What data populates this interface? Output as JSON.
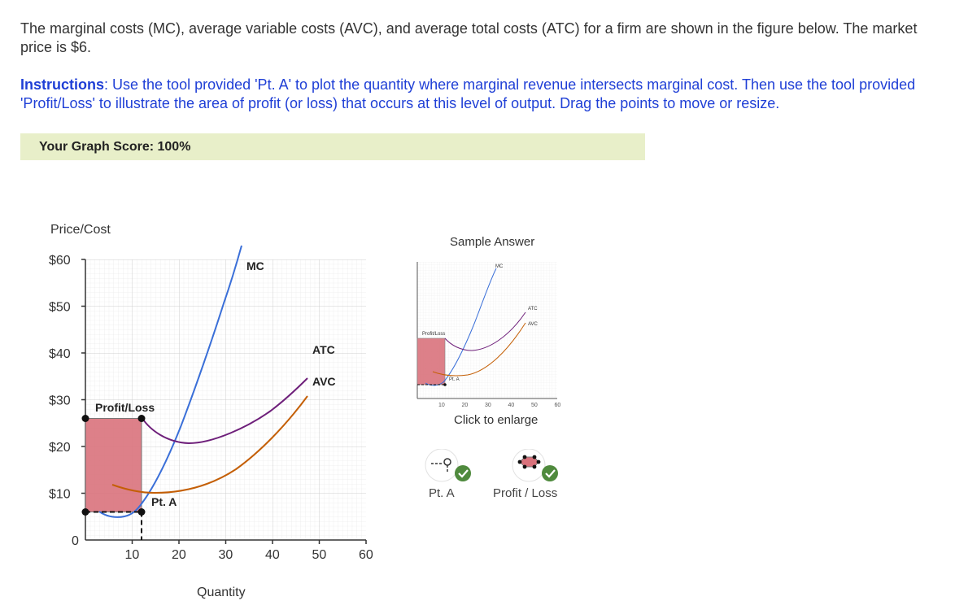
{
  "question": "The marginal costs (MC), average variable costs (AVC), and average total costs (ATC) for a firm are shown in the figure below. The market price is $6.",
  "instructions": {
    "label": "Instructions",
    "text": ": Use the tool provided 'Pt. A' to plot the quantity where marginal revenue intersects marginal cost. Then use the tool provided 'Profit/Loss' to illustrate the area of profit (or loss) that occurs at this level of output. Drag the points to move or resize."
  },
  "score": "Your Graph Score: 100%",
  "graph": {
    "y_axis_title": "Price/Cost",
    "x_axis_title": "Quantity",
    "y_ticks": [
      "$60",
      "$50",
      "$40",
      "$30",
      "$20",
      "$10",
      "0"
    ],
    "x_ticks": [
      "10",
      "20",
      "30",
      "40",
      "50",
      "60"
    ],
    "curve_labels": {
      "mc": "MC",
      "atc": "ATC",
      "avc": "AVC"
    },
    "profit_loss_label": "Profit/Loss",
    "pt_a_label": "Pt. A",
    "colors": {
      "mc": "#3a6fd8",
      "atc": "#6e1f7a",
      "avc": "#c45f06",
      "loss": "#d9727c"
    }
  },
  "chart_data": {
    "type": "line",
    "xlabel": "Quantity",
    "ylabel": "Price/Cost",
    "xlim": [
      0,
      60
    ],
    "ylim": [
      0,
      60
    ],
    "series": [
      {
        "name": "MC",
        "x": [
          8,
          10,
          12,
          15,
          20,
          25,
          30,
          33
        ],
        "y": [
          5,
          5,
          6,
          10,
          18,
          32,
          47,
          58
        ]
      },
      {
        "name": "ATC",
        "x": [
          12,
          15,
          20,
          23,
          30,
          40,
          50
        ],
        "y": [
          24,
          21,
          18,
          18,
          20,
          27,
          38
        ]
      },
      {
        "name": "AVC",
        "x": [
          6,
          10,
          15,
          20,
          30,
          40,
          50
        ],
        "y": [
          12,
          10,
          10,
          10,
          13,
          20,
          33
        ]
      }
    ],
    "points": [
      {
        "name": "Pt. A",
        "x": 12,
        "y": 6
      }
    ],
    "profit_loss": {
      "x": [
        0,
        12
      ],
      "y": [
        6,
        20
      ]
    }
  },
  "sample": {
    "title": "Sample Answer",
    "enlarge": "Click to enlarge",
    "labels": {
      "mc": "MC",
      "atc": "ATC",
      "avc": "AVC",
      "profit_loss": "Profit/Loss",
      "pt_a": "Pt. A"
    },
    "x_ticks": [
      "10",
      "20",
      "30",
      "40",
      "50",
      "60"
    ]
  },
  "tools": [
    {
      "label": "Pt. A"
    },
    {
      "label": "Profit / Loss"
    }
  ]
}
